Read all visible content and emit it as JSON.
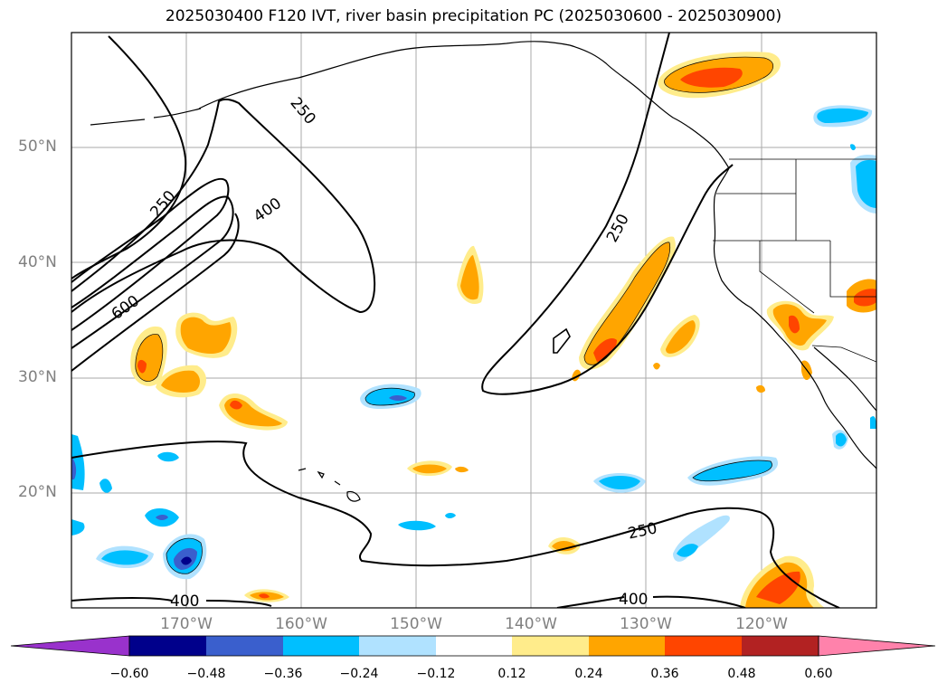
{
  "title": "2025030400 F120 IVT, river basin precipitation PC (2025030600 - 2025030900)",
  "lat_labels": [
    "50°N",
    "40°N",
    "30°N",
    "20°N"
  ],
  "lon_labels": [
    "170°W",
    "160°W",
    "150°W",
    "140°W",
    "130°W",
    "120°W"
  ],
  "contour_labels": [
    "250",
    "250",
    "400",
    "600",
    "250",
    "250",
    "400",
    "400"
  ],
  "colorbar": {
    "ticks": [
      "−0.60",
      "−0.48",
      "−0.36",
      "−0.24",
      "−0.12",
      "0.12",
      "0.24",
      "0.36",
      "0.48",
      "0.60"
    ],
    "colors": [
      "#9932cc",
      "#00008b",
      "#3a5fcd",
      "#00bfff",
      "#b0e2ff",
      "#ffffff",
      "#ffec8b",
      "#ffa500",
      "#ff4500",
      "#b22222",
      "#ff82ab"
    ]
  },
  "colors": {
    "grid": "#aaaaaa",
    "contour": "#000000",
    "label_gray": "#808080"
  }
}
